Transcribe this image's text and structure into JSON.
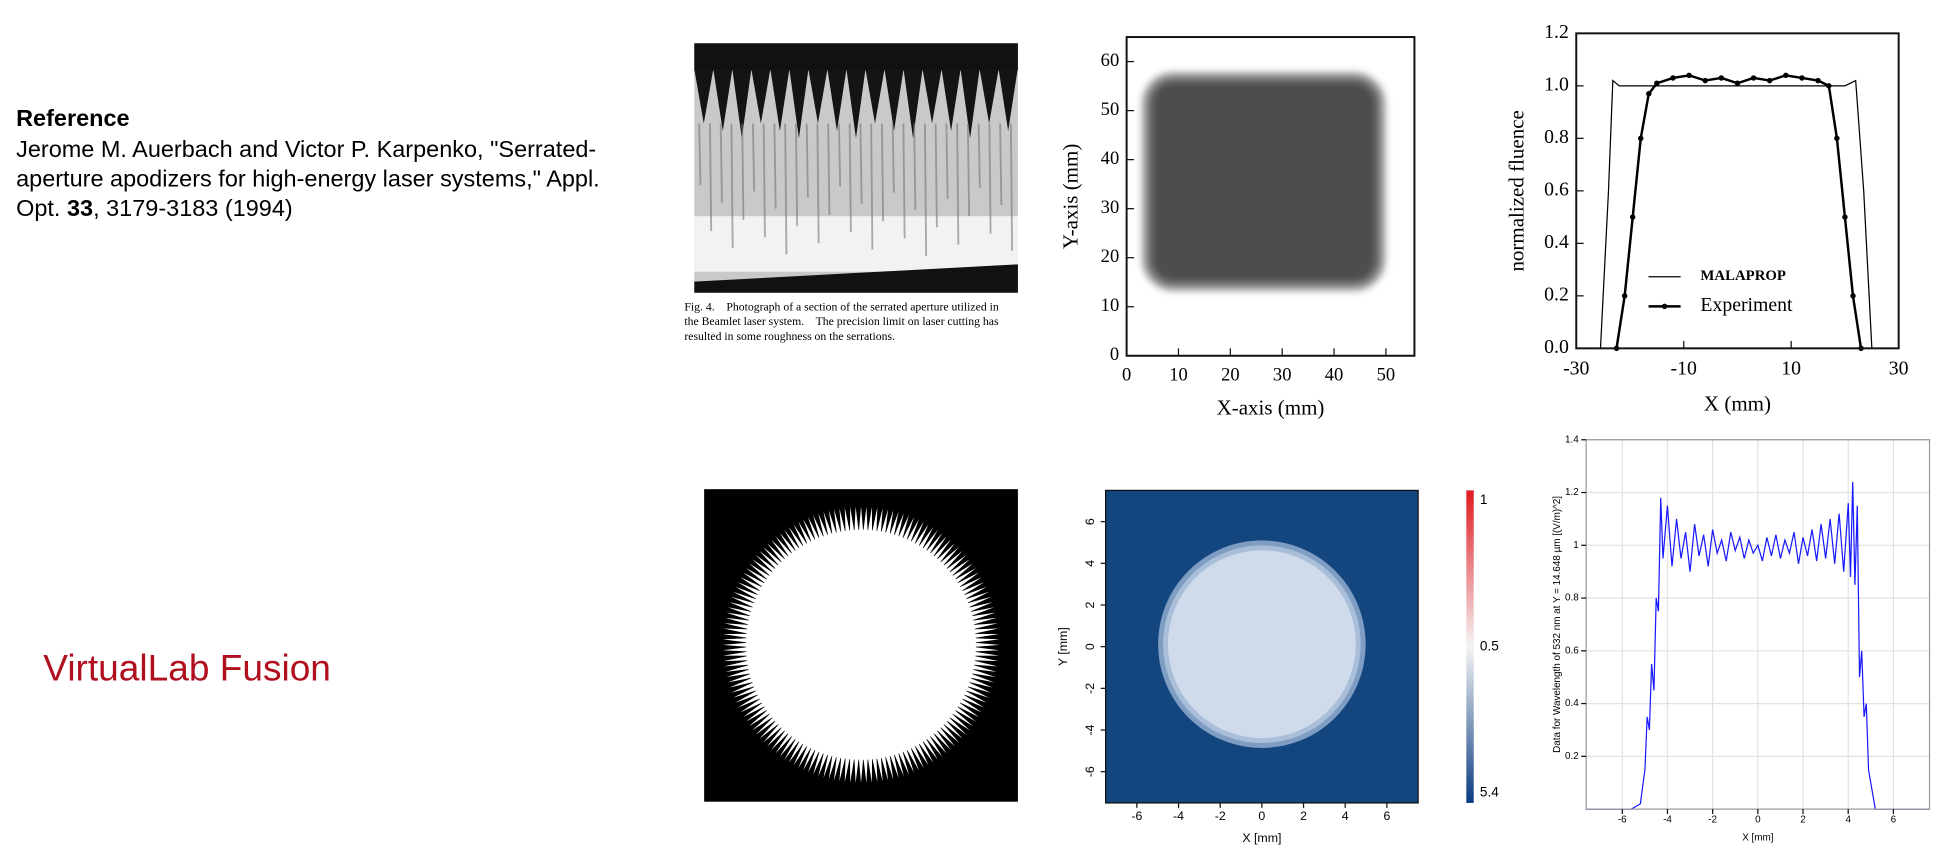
{
  "reference": {
    "heading": "Reference",
    "lines": [
      "Jerome M. Auerbach and Victor P. Karpenko, \"Serrated-",
      "aperture apodizers for high-energy laser systems,\" Appl."
    ],
    "last_line": {
      "before": "Opt. ",
      "volume": "33",
      "after": ", 3179-3183 (1994)"
    }
  },
  "software_label": "VirtualLab Fusion",
  "photo_caption": [
    "Fig. 4.    Photograph of a section of the serrated aperture utilized in",
    "the Beamlet laser system.    The precision limit on laser cutting has",
    "resulted in some roughness on the serrations."
  ],
  "charts": [
    {
      "type": "image-map",
      "xlabel": "X-axis (mm)",
      "ylabel": "Y-axis (mm)",
      "xlim": [
        0,
        55.5
      ],
      "ylim": [
        0,
        65
      ],
      "xticks": [
        0,
        10,
        20,
        30,
        40,
        50
      ],
      "yticks": [
        0,
        10,
        20,
        30,
        40,
        50,
        60
      ]
    },
    {
      "type": "line",
      "xlabel": "X  (mm)",
      "ylabel": "normalized fluence",
      "xlim": [
        -30,
        30
      ],
      "ylim": [
        0,
        1.2
      ],
      "xticks": [
        -30,
        -10,
        10,
        30
      ],
      "yticks": [
        {
          "value": 0,
          "label": "0.0"
        },
        0.2,
        0.4,
        0.6,
        0.8,
        {
          "value": 1,
          "label": "1.0"
        },
        1.2
      ],
      "legend": "lower center",
      "grid": false,
      "series": [
        {
          "name": "MALAPROP",
          "color": "#000000",
          "width": 1,
          "marker": "none",
          "x": [
            -30,
            -25.5,
            -24,
            -23.2,
            -22,
            -20,
            0,
            20,
            22,
            23.5,
            25,
            30
          ],
          "values": [
            0,
            0,
            0.6,
            1.02,
            1.0,
            1.0,
            1.0,
            1.0,
            1.02,
            0.6,
            0,
            0
          ]
        },
        {
          "name": "Experiment",
          "color": "#000000",
          "width": 2,
          "marker": "circle",
          "x": [
            -22.5,
            -21,
            -19.5,
            -18,
            -16.5,
            -15,
            -12,
            -9,
            -6,
            -3,
            0,
            3,
            6,
            9,
            12,
            15,
            17,
            18.5,
            20,
            21.5,
            23
          ],
          "values": [
            0,
            0.2,
            0.5,
            0.8,
            0.97,
            1.01,
            1.03,
            1.04,
            1.02,
            1.03,
            1.01,
            1.03,
            1.02,
            1.04,
            1.03,
            1.02,
            1.0,
            0.8,
            0.5,
            0.2,
            0
          ]
        }
      ]
    },
    {
      "type": "field-map",
      "xlabel": "X [mm]",
      "ylabel": "Y [mm]",
      "xlim": [
        -7.5,
        7.5
      ],
      "ylim": [
        -7.5,
        7.5
      ],
      "xticks": [
        -6,
        -4,
        -2,
        0,
        2,
        4,
        6
      ],
      "yticks": [
        -6,
        -4,
        -2,
        0,
        2,
        4,
        6
      ],
      "colorbar": [
        "1",
        "0.5",
        "5.4"
      ]
    },
    {
      "type": "line",
      "xlabel": "X [mm]",
      "ylabel": "Data for  Wavelength of 532 nm at Y = 14.648 µm [(V/m)^2]",
      "xlim": [
        -7.6,
        7.6
      ],
      "ylim": [
        0,
        1.4
      ],
      "xticks": [
        -6,
        -4,
        -2,
        0,
        2,
        4,
        6
      ],
      "yticks": [
        0.2,
        0.4,
        0.6,
        0.8,
        1,
        1.2,
        1.4
      ],
      "grid": true,
      "series": [
        {
          "name": null,
          "color": "#1a1aff",
          "width": 1,
          "marker": "none",
          "x": [
            -7.6,
            -5.6,
            -5.2,
            -5.0,
            -4.9,
            -4.8,
            -4.7,
            -4.6,
            -4.5,
            -4.4,
            -4.3,
            -4.2,
            -4.0,
            -3.8,
            -3.6,
            -3.4,
            -3.2,
            -3.0,
            -2.8,
            -2.6,
            -2.4,
            -2.2,
            -2.0,
            -1.8,
            -1.6,
            -1.4,
            -1.2,
            -1.0,
            -0.8,
            -0.6,
            -0.4,
            -0.2,
            0,
            0.2,
            0.4,
            0.6,
            0.8,
            1.0,
            1.2,
            1.4,
            1.6,
            1.8,
            2.0,
            2.2,
            2.4,
            2.6,
            2.8,
            3.0,
            3.2,
            3.4,
            3.6,
            3.8,
            4.0,
            4.1,
            4.2,
            4.3,
            4.4,
            4.5,
            4.6,
            4.7,
            4.8,
            4.9,
            5.0,
            5.2,
            7.6
          ],
          "values": [
            0,
            0,
            0.02,
            0.15,
            0.35,
            0.3,
            0.55,
            0.45,
            0.8,
            0.75,
            1.18,
            0.95,
            1.15,
            0.92,
            1.1,
            0.95,
            1.05,
            0.9,
            1.08,
            0.96,
            1.04,
            0.92,
            1.06,
            0.97,
            1.02,
            0.94,
            1.05,
            0.98,
            1.03,
            0.95,
            1.02,
            0.97,
            1.0,
            0.94,
            1.03,
            0.96,
            1.04,
            0.95,
            1.02,
            0.97,
            1.05,
            0.93,
            1.03,
            0.96,
            1.06,
            0.94,
            1.08,
            0.95,
            1.1,
            0.93,
            1.12,
            0.9,
            1.16,
            0.88,
            1.24,
            0.85,
            1.15,
            0.5,
            0.6,
            0.35,
            0.4,
            0.15,
            0.1,
            0,
            0
          ]
        }
      ]
    }
  ]
}
